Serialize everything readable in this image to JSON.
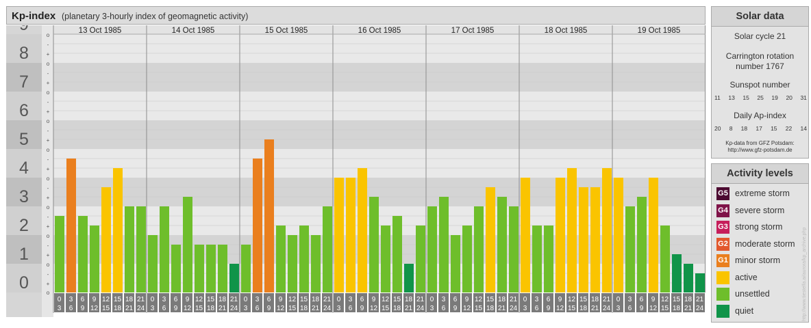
{
  "header": {
    "title": "Kp-index",
    "subtitle": "(planetary 3-hourly index of geomagnetic activity)"
  },
  "chart_data": {
    "type": "bar",
    "title": "Kp-index",
    "ylim": [
      0,
      9
    ],
    "y_ticks": [
      "0",
      "1",
      "2",
      "3",
      "4",
      "5",
      "6",
      "7",
      "8",
      "9"
    ],
    "minor_tick_labels": [
      "+",
      "o",
      "-"
    ],
    "days": [
      "13 Oct 1985",
      "14 Oct 1985",
      "15 Oct 1985",
      "16 Oct 1985",
      "17 Oct 1985",
      "18 Oct 1985",
      "19 Oct 1985"
    ],
    "interval_top": [
      "0",
      "3",
      "6",
      "9",
      "12",
      "15",
      "18",
      "21"
    ],
    "interval_bottom": [
      "3",
      "6",
      "9",
      "12",
      "15",
      "18",
      "21",
      "24"
    ],
    "values": [
      [
        2.667,
        4.667,
        2.667,
        2.333,
        3.667,
        4.333,
        3.0,
        3.0
      ],
      [
        2.0,
        3.0,
        1.667,
        3.333,
        1.667,
        1.667,
        1.667,
        1.0
      ],
      [
        1.667,
        4.667,
        5.333,
        2.333,
        2.0,
        2.333,
        2.0,
        3.0
      ],
      [
        4.0,
        4.0,
        4.333,
        3.333,
        2.333,
        2.667,
        1.0,
        2.333
      ],
      [
        3.0,
        3.333,
        2.0,
        2.333,
        3.0,
        3.667,
        3.333,
        3.0
      ],
      [
        4.0,
        2.333,
        2.333,
        4.0,
        4.333,
        3.667,
        3.667,
        4.333
      ],
      [
        4.0,
        3.0,
        3.333,
        4.0,
        2.333,
        1.333,
        1.0,
        0.667
      ]
    ],
    "colors": {
      "quiet": "#109449",
      "unsettled": "#6ebe2b",
      "active": "#fac400",
      "G1": "#ea7f1e",
      "G2": "#e2582d",
      "G3": "#c61e5b",
      "G4": "#7f1349",
      "G5": "#4c0a31"
    }
  },
  "solar": {
    "title": "Solar data",
    "cycle": "Solar cycle 21",
    "carrington_line1": "Carrington rotation",
    "carrington_line2": "number 1767",
    "sunspot_label": "Sunspot number",
    "sunspot_values": [
      "11",
      "13",
      "15",
      "25",
      "19",
      "20",
      "31"
    ],
    "ap_label": "Daily Ap-index",
    "ap_values": [
      "20",
      "8",
      "18",
      "17",
      "15",
      "22",
      "14"
    ],
    "credit_line1": "Kp-data from GFZ Potsdam:",
    "credit_line2": "http://www.gfz-potsdam.de"
  },
  "legend": {
    "title": "Activity levels",
    "items": [
      {
        "code": "G5",
        "label": "extreme storm",
        "color": "#4c0a31"
      },
      {
        "code": "G4",
        "label": "severe storm",
        "color": "#7f1349"
      },
      {
        "code": "G3",
        "label": "strong storm",
        "color": "#c61e5b"
      },
      {
        "code": "G2",
        "label": "moderate storm",
        "color": "#e2582d"
      },
      {
        "code": "G1",
        "label": "minor storm",
        "color": "#ea7f1e"
      },
      {
        "code": "",
        "label": "active",
        "color": "#fac400"
      },
      {
        "code": "",
        "label": "unsettled",
        "color": "#6ebe2b"
      },
      {
        "code": "",
        "label": "quiet",
        "color": "#109449"
      }
    ]
  },
  "side_credit": "http://www.tiestelfa.ai/aurora/kp_archive.php"
}
